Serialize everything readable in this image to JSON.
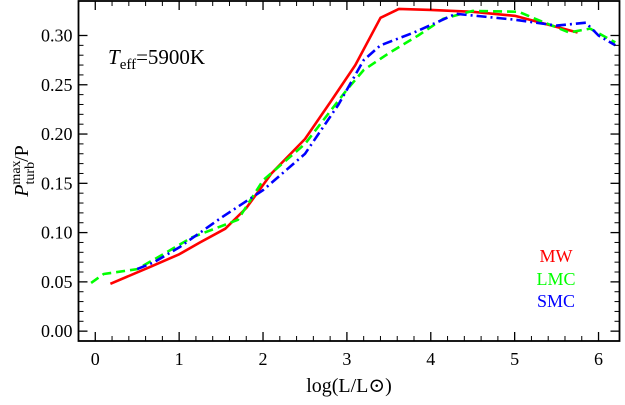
{
  "chart_data": {
    "type": "line",
    "xlabel": "log(L/L⊙)",
    "ylabel": {
      "main": "P",
      "superscript": "max",
      "subscript": "turb",
      "suffix": "/P"
    },
    "annotation": {
      "main": "T",
      "subscript": "eff",
      "suffix": "=5900K"
    },
    "xlim": [
      -0.2,
      6.25
    ],
    "ylim": [
      -0.01,
      0.335
    ],
    "xticks": [
      0,
      1,
      2,
      3,
      4,
      5,
      6
    ],
    "xtick_labels": [
      "0",
      "1",
      "2",
      "3",
      "4",
      "5",
      "6"
    ],
    "yticks": [
      0.0,
      0.05,
      0.1,
      0.15,
      0.2,
      0.25,
      0.3
    ],
    "ytick_labels": [
      "0.00",
      "0.05",
      "0.10",
      "0.15",
      "0.20",
      "0.25",
      "0.30"
    ],
    "grid": false,
    "legend_position": "bottom-right",
    "series": [
      {
        "name": "MW",
        "color": "#ff0000",
        "dash": "solid",
        "points": [
          [
            0.18,
            0.048
          ],
          [
            0.65,
            0.065
          ],
          [
            1.0,
            0.078
          ],
          [
            1.25,
            0.09
          ],
          [
            1.55,
            0.104
          ],
          [
            1.8,
            0.125
          ],
          [
            2.1,
            0.16
          ],
          [
            2.5,
            0.195
          ],
          [
            2.8,
            0.232
          ],
          [
            3.1,
            0.27
          ],
          [
            3.4,
            0.318
          ],
          [
            3.62,
            0.327
          ],
          [
            4.0,
            0.326
          ],
          [
            4.5,
            0.324
          ],
          [
            5.0,
            0.32
          ],
          [
            5.75,
            0.303
          ]
        ]
      },
      {
        "name": "LMC",
        "color": "#00ff00",
        "dash": "dashed",
        "points": [
          [
            -0.05,
            0.049
          ],
          [
            0.1,
            0.058
          ],
          [
            0.5,
            0.063
          ],
          [
            0.85,
            0.08
          ],
          [
            1.15,
            0.095
          ],
          [
            1.7,
            0.113
          ],
          [
            2.0,
            0.153
          ],
          [
            2.5,
            0.19
          ],
          [
            3.0,
            0.245
          ],
          [
            3.2,
            0.265
          ],
          [
            3.5,
            0.282
          ],
          [
            3.85,
            0.3
          ],
          [
            4.15,
            0.317
          ],
          [
            4.5,
            0.325
          ],
          [
            5.05,
            0.324
          ],
          [
            5.3,
            0.315
          ],
          [
            5.65,
            0.303
          ],
          [
            5.9,
            0.307
          ],
          [
            6.2,
            0.293
          ]
        ]
      },
      {
        "name": "SMC",
        "color": "#0000ff",
        "dash": "dashdot",
        "points": [
          [
            0.5,
            0.063
          ],
          [
            0.7,
            0.07
          ],
          [
            1.0,
            0.085
          ],
          [
            1.5,
            0.115
          ],
          [
            2.0,
            0.143
          ],
          [
            2.5,
            0.18
          ],
          [
            2.9,
            0.23
          ],
          [
            3.2,
            0.275
          ],
          [
            3.4,
            0.29
          ],
          [
            3.8,
            0.303
          ],
          [
            4.3,
            0.322
          ],
          [
            5.0,
            0.316
          ],
          [
            5.5,
            0.31
          ],
          [
            5.85,
            0.313
          ],
          [
            6.0,
            0.3
          ],
          [
            6.2,
            0.29
          ]
        ]
      }
    ]
  }
}
